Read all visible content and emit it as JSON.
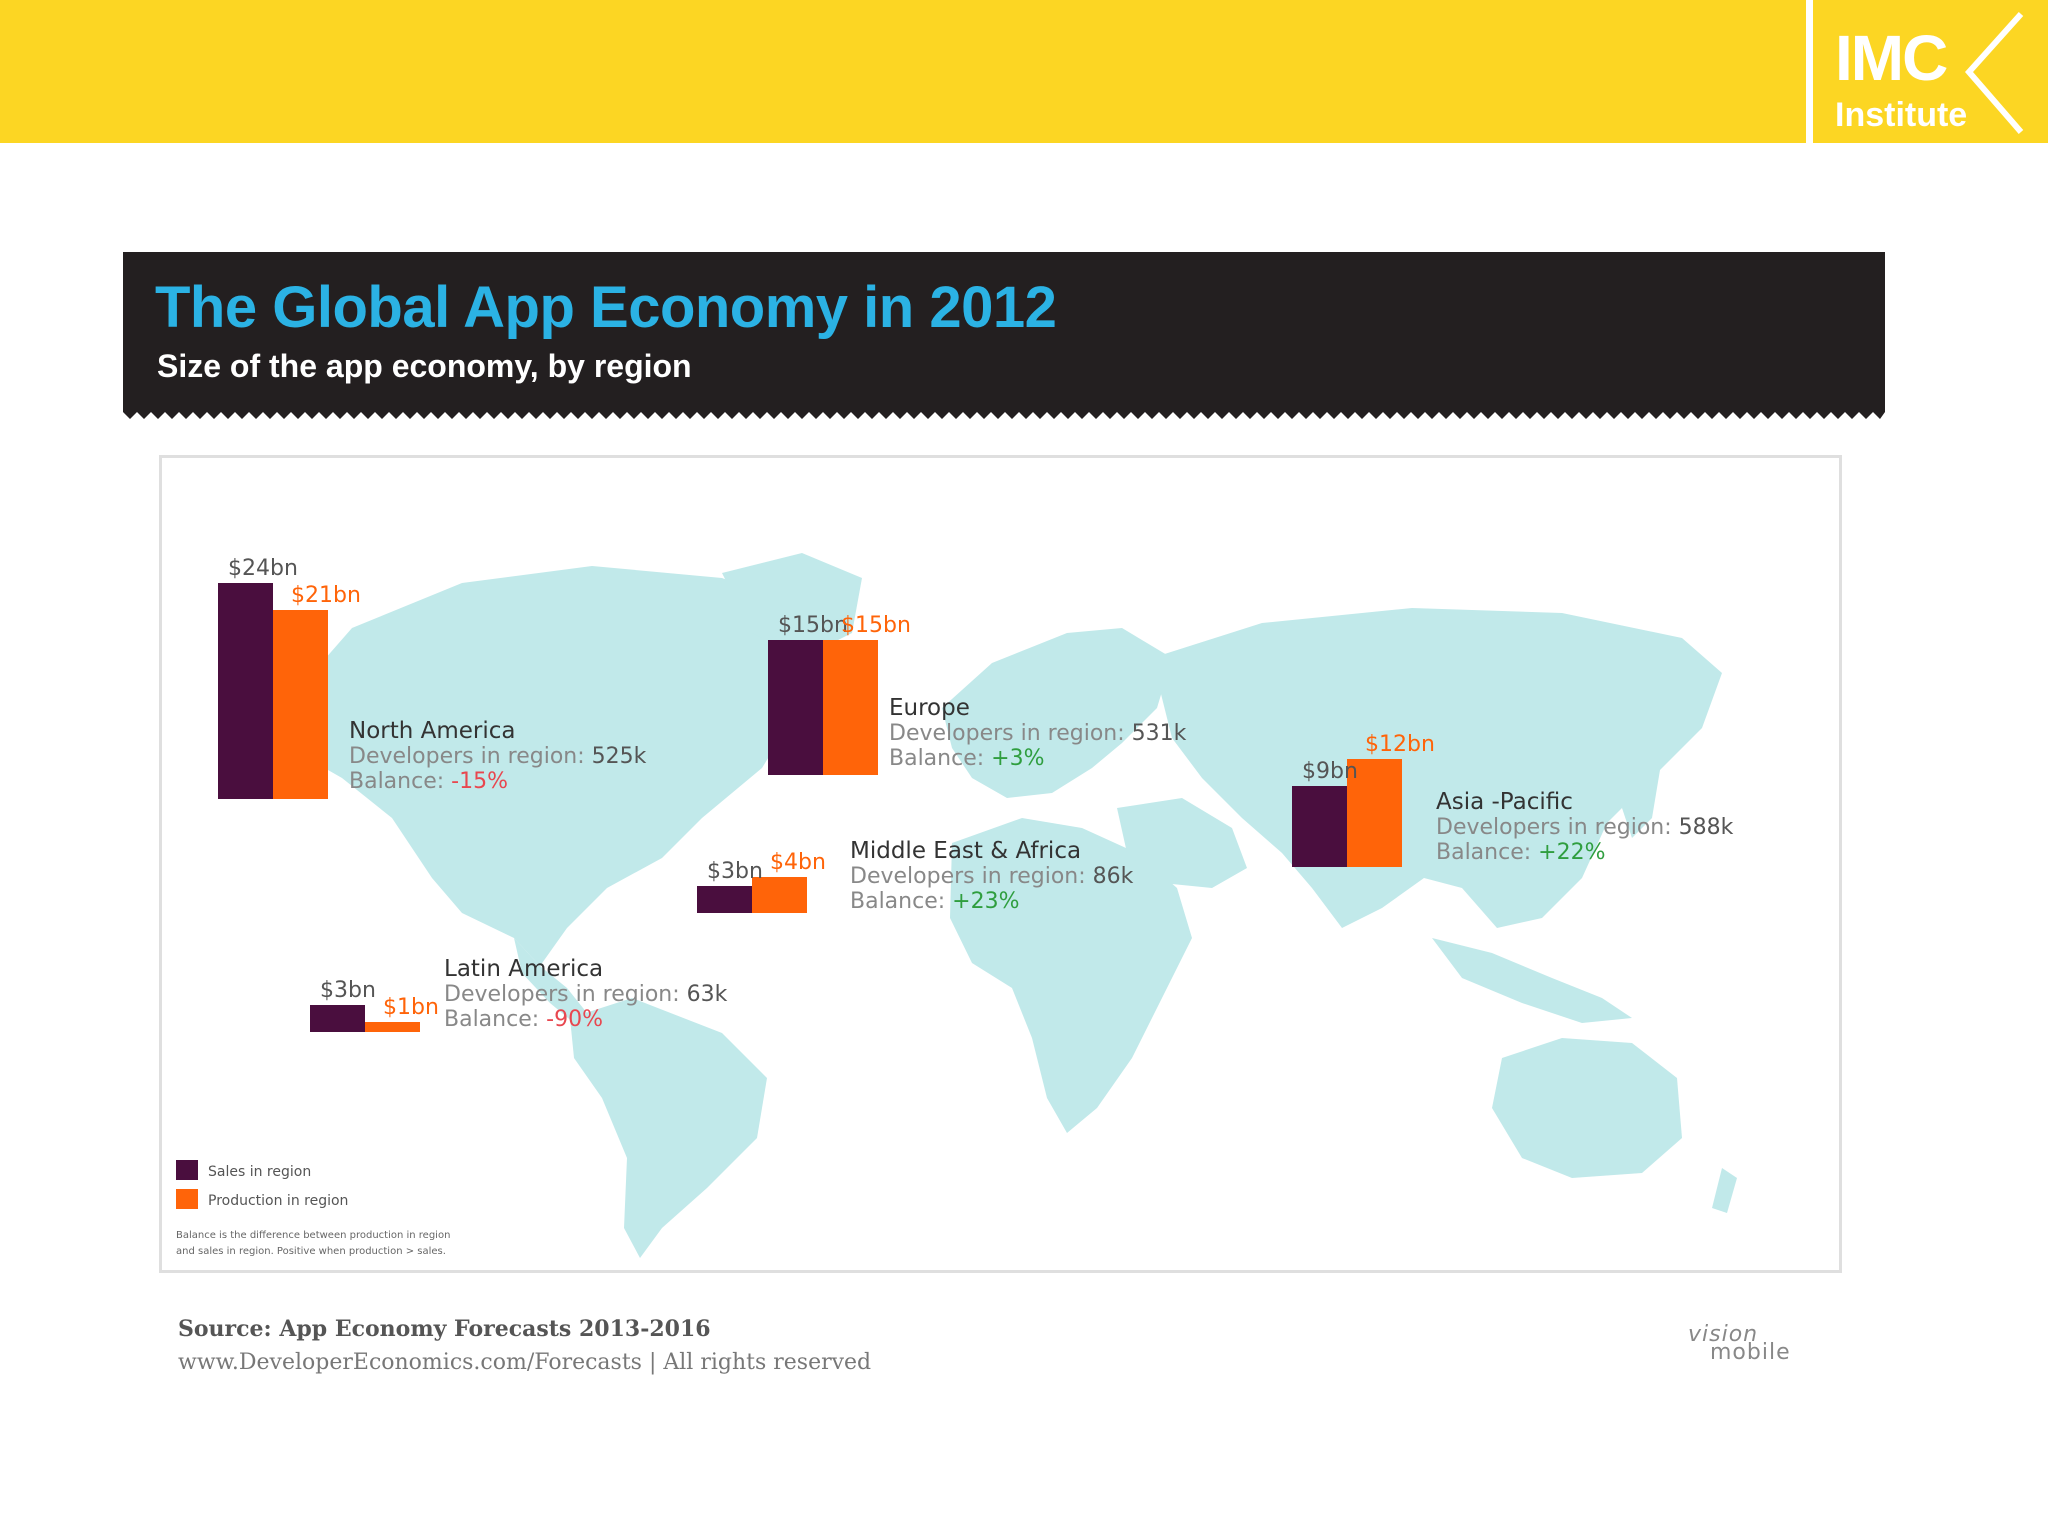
{
  "brand": {
    "logo_line1": "IMC",
    "logo_line2": "Institute",
    "colors": {
      "bar": "#fcd623",
      "banner": "#231f20",
      "title": "#2bb2e4",
      "sales": "#4a0e3e",
      "production": "#ff6409",
      "map": "#c1e9ea",
      "negative": "#e8474f",
      "positive": "#2f9e3f"
    }
  },
  "chart_data": {
    "type": "bar",
    "title": "The Global App Economy in 2012",
    "subtitle": "Size of the app economy, by region",
    "unit": "$bn",
    "series": [
      {
        "name": "Sales in region",
        "color": "#4a0e3e",
        "values": [
          24,
          15,
          3,
          9,
          3
        ]
      },
      {
        "name": "Production in region",
        "color": "#ff6409",
        "values": [
          21,
          15,
          4,
          12,
          1
        ]
      }
    ],
    "regions": [
      {
        "name": "North America",
        "sales_label": "$24bn",
        "production_label": "$21bn",
        "developers_label": "Developers in region:",
        "developers": "525k",
        "balance_label": "Balance:",
        "balance": "-15%"
      },
      {
        "name": "Europe",
        "sales_label": "$15bn",
        "production_label": "$15bn",
        "developers_label": "Developers in region:",
        "developers": "531k",
        "balance_label": "Balance:",
        "balance": "+3%"
      },
      {
        "name": "Middle East & Africa",
        "sales_label": "$3bn",
        "production_label": "$4bn",
        "developers_label": "Developers in region:",
        "developers": "86k",
        "balance_label": "Balance:",
        "balance": "+23%"
      },
      {
        "name": "Asia -Pacific",
        "sales_label": "$9bn",
        "production_label": "$12bn",
        "developers_label": "Developers in region:",
        "developers": "588k",
        "balance_label": "Balance:",
        "balance": "+22%"
      },
      {
        "name": "Latin America",
        "sales_label": "$3bn",
        "production_label": "$1bn",
        "developers_label": "Developers in region:",
        "developers": "63k",
        "balance_label": "Balance:",
        "balance": "-90%"
      }
    ],
    "legend": {
      "sales": "Sales in region",
      "production": "Production in region"
    },
    "footnote_line1": "Balance is the difference between production in region",
    "footnote_line2": "and sales in region. Positive when production > sales."
  },
  "source": {
    "line1": "Source:  App Economy Forecasts 2013-2016",
    "line2": "www.DeveloperEconomics.com/Forecasts | All rights reserved",
    "logo_top": "vision",
    "logo_bottom": "mobile"
  }
}
